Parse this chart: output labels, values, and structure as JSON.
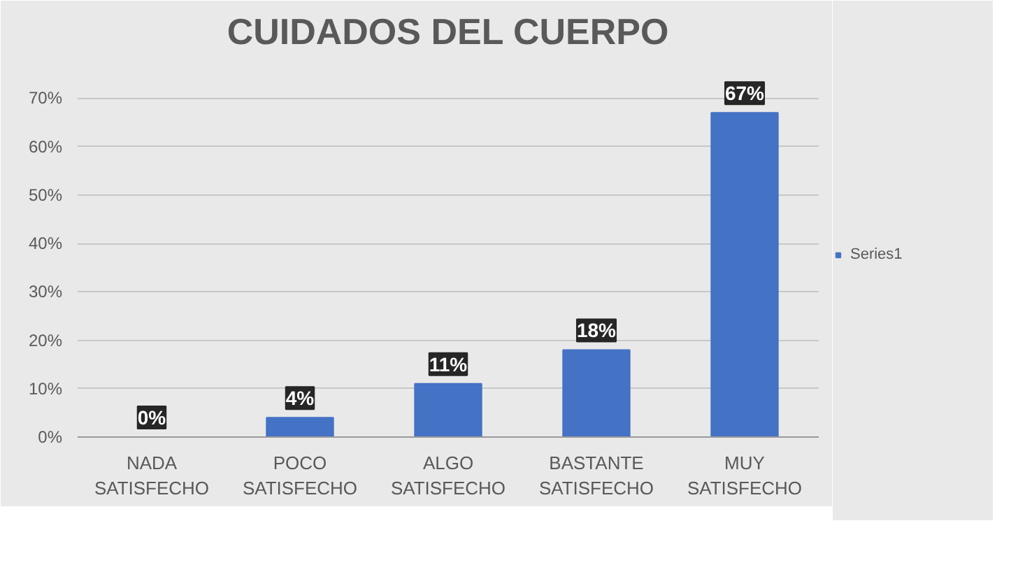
{
  "chart_data": {
    "type": "bar",
    "title": "CUIDADOS DEL CUERPO",
    "categories": [
      "NADA SATISFECHO",
      "POCO SATISFECHO",
      "ALGO SATISFECHO",
      "BASTANTE SATISFECHO",
      "MUY SATISFECHO"
    ],
    "series": [
      {
        "name": "Series1",
        "color": "#4472c4",
        "values": [
          0,
          4,
          11,
          18,
          67
        ],
        "value_labels": [
          "0%",
          "4%",
          "11%",
          "18%",
          "67%"
        ]
      }
    ],
    "ylim": [
      0,
      78
    ],
    "yticks": [
      {
        "value": 0,
        "label": "0%"
      },
      {
        "value": 10,
        "label": "10%"
      },
      {
        "value": 20,
        "label": "20%"
      },
      {
        "value": 30,
        "label": "30%"
      },
      {
        "value": 40,
        "label": "40%"
      },
      {
        "value": 50,
        "label": "50%"
      },
      {
        "value": 60,
        "label": "60%"
      },
      {
        "value": 70,
        "label": "70%"
      }
    ],
    "grid": "y",
    "legend": "right"
  }
}
